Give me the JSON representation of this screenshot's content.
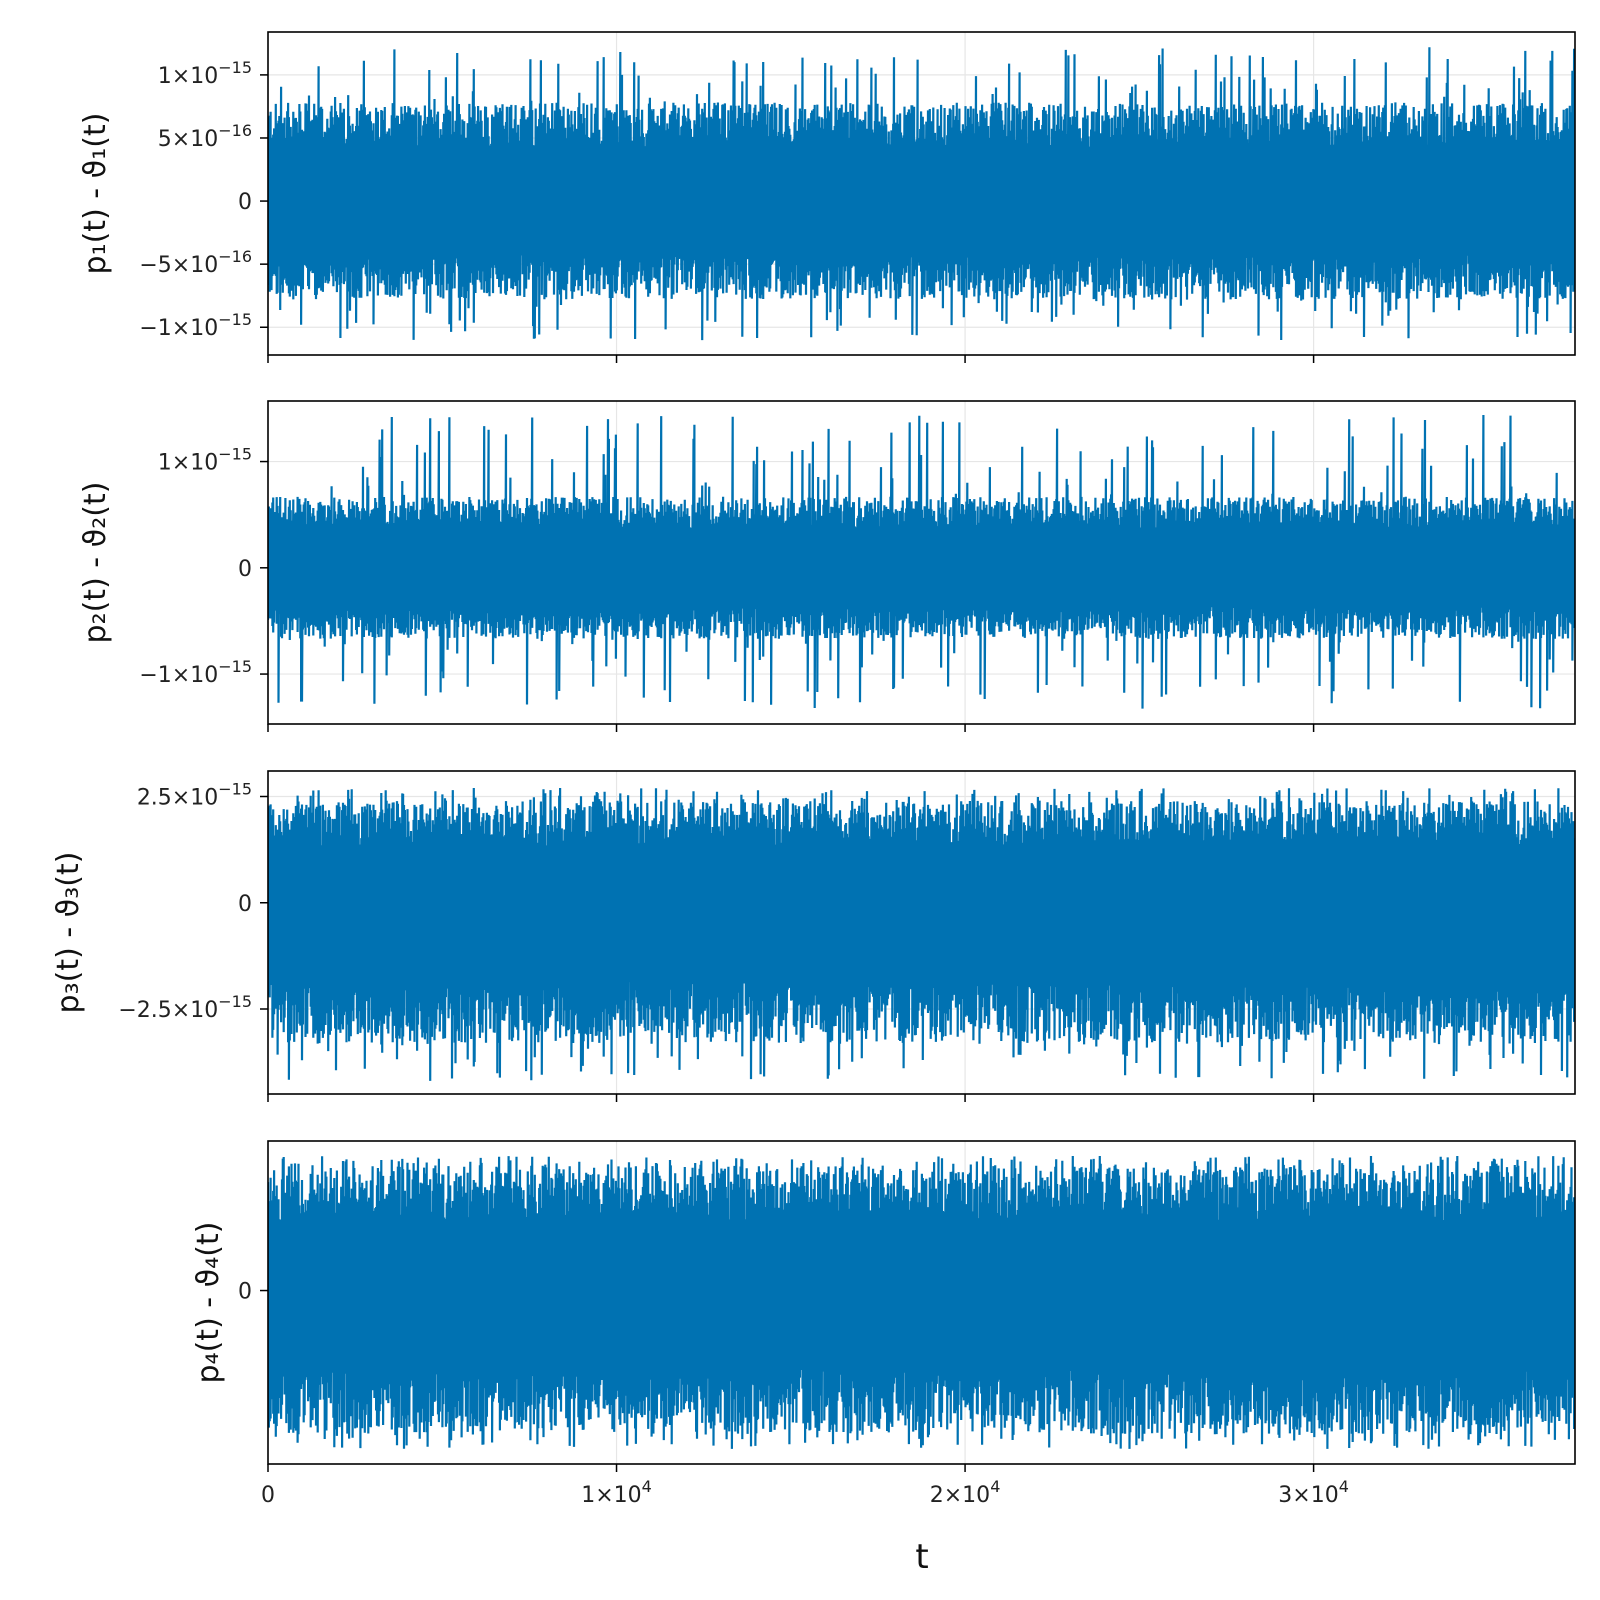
{
  "chart_data": {
    "type": "line",
    "layout": "4 stacked panels sharing x-axis",
    "xlabel": "t",
    "x_range": [
      0,
      37500
    ],
    "x_ticks": [
      0,
      10000,
      20000,
      30000
    ],
    "x_tick_labels": [
      {
        "mantissa": "0",
        "exp": ""
      },
      {
        "mantissa": "1×10",
        "exp": "4"
      },
      {
        "mantissa": "2×10",
        "exp": "4"
      },
      {
        "mantissa": "3×10",
        "exp": "4"
      }
    ],
    "grid": true,
    "line_color": "#0072b2",
    "panels": [
      {
        "ylabel": "p₁(t) - ϑ₁(t)",
        "ylim": [
          -1.22e-15,
          1.34e-15
        ],
        "y_ticks": [
          1e-15,
          5e-16,
          0,
          -5e-16,
          -1e-15
        ],
        "y_tick_labels": [
          {
            "mantissa": "1×10",
            "exp": "−15"
          },
          {
            "mantissa": "5×10",
            "exp": "−16"
          },
          {
            "mantissa": "0",
            "exp": ""
          },
          {
            "mantissa": "−5×10",
            "exp": "−16"
          },
          {
            "mantissa": "−1×10",
            "exp": "−15"
          }
        ],
        "band": {
          "upper": 7.8e-16,
          "lower": -7.8e-16,
          "spike_max": 1.22e-15,
          "spike_min": -1.11e-15
        }
      },
      {
        "ylabel": "p₂(t) - ϑ₂(t)",
        "ylim": [
          -1.47e-15,
          1.57e-15
        ],
        "y_ticks": [
          1e-15,
          0,
          -1e-15
        ],
        "y_tick_labels": [
          {
            "mantissa": "1×10",
            "exp": "−15"
          },
          {
            "mantissa": "0",
            "exp": ""
          },
          {
            "mantissa": "−1×10",
            "exp": "−15"
          }
        ],
        "band": {
          "upper": 6.7e-16,
          "lower": -6.7e-16,
          "spike_max": 1.44e-15,
          "spike_min": -1.33e-15
        }
      },
      {
        "ylabel": "p₃(t) - ϑ₃(t)",
        "ylim": [
          -4.5e-15,
          3.1e-15
        ],
        "y_ticks": [
          2.5e-15,
          0,
          -2.5e-15
        ],
        "y_tick_labels": [
          {
            "mantissa": "2.5×10",
            "exp": "−15"
          },
          {
            "mantissa": "0",
            "exp": ""
          },
          {
            "mantissa": "−2.5×10",
            "exp": "−15"
          }
        ],
        "band": {
          "upper": 2.4e-15,
          "lower": -3.3e-15,
          "spike_max": 2.7e-15,
          "spike_min": -4.2e-15
        }
      },
      {
        "ylabel": "p₄(t) - ϑ₄(t)",
        "ylim": [
          -5.8e-15,
          5e-15
        ],
        "y_ticks": [
          0
        ],
        "y_tick_labels": [
          {
            "mantissa": "0",
            "exp": ""
          }
        ],
        "band": {
          "upper": 4.2e-15,
          "lower": -4.8e-15,
          "spike_max": 4.5e-15,
          "spike_min": -5.3e-15
        }
      }
    ]
  }
}
